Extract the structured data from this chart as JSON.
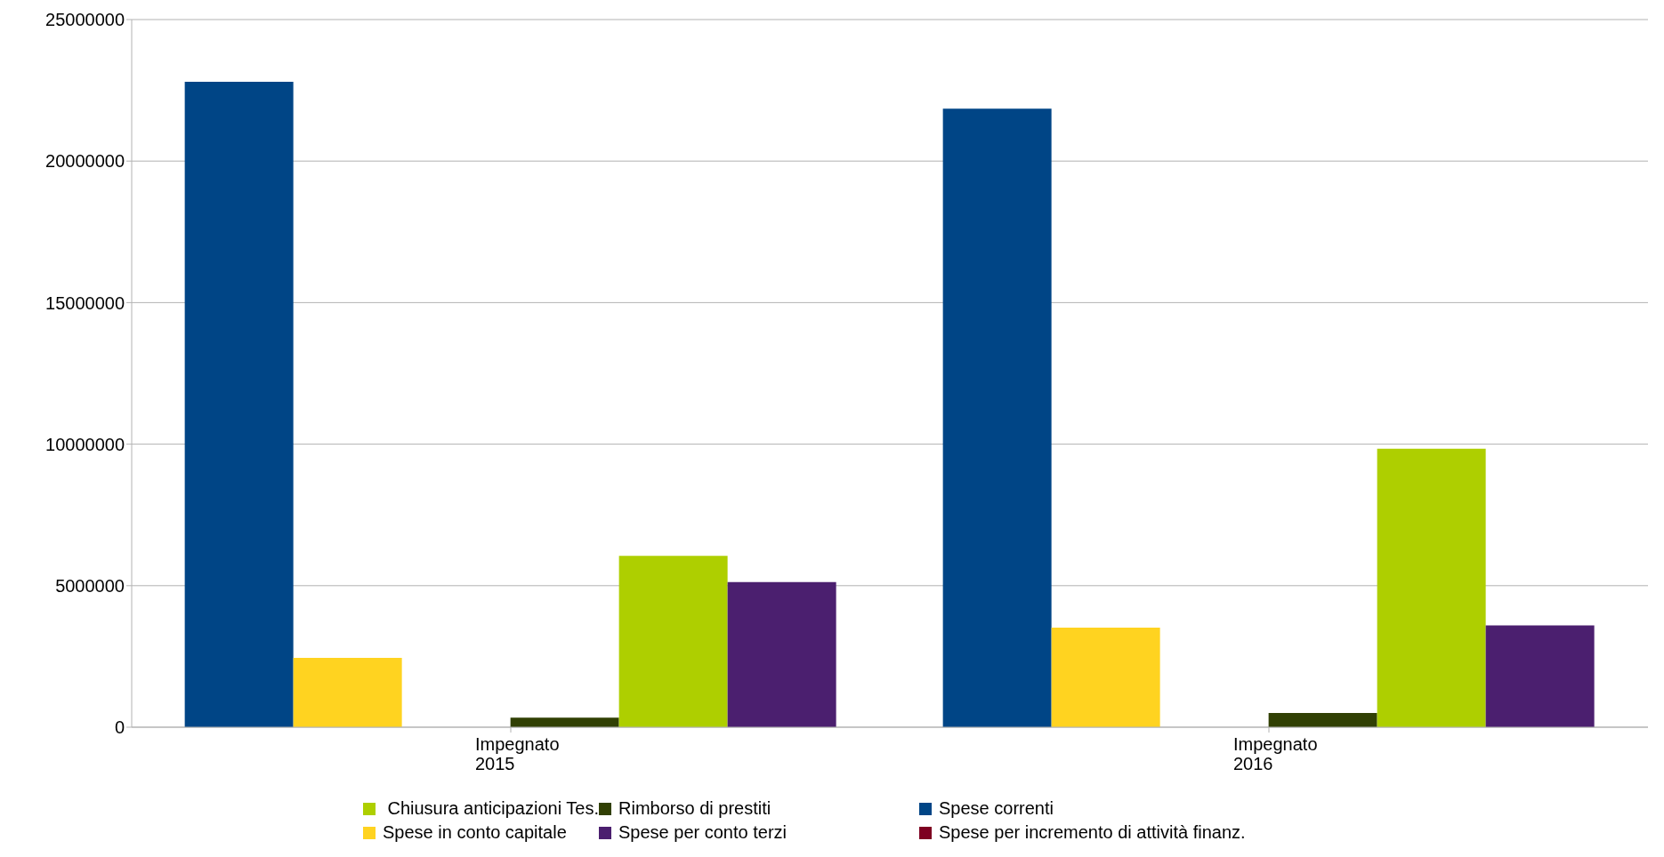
{
  "chart_data": {
    "type": "bar",
    "categories": [
      "Impegnato\n2015",
      "Impegnato\n2016"
    ],
    "series": [
      {
        "name": "Spese correnti",
        "color": "#004586",
        "values": [
          22800000,
          21850000
        ]
      },
      {
        "name": "Spese in conto capitale",
        "color": "#ffd320",
        "values": [
          2450000,
          3520000
        ]
      },
      {
        "name": "Spese per incremento di attività finanz.",
        "color": "#7e0021",
        "values": [
          0,
          0
        ]
      },
      {
        "name": "Rimborso di prestiti",
        "color": "#314004",
        "values": [
          340000,
          500000
        ]
      },
      {
        "name": " Chiusura anticipazioni Tes.",
        "color": "#aecf00",
        "values": [
          6050000,
          9840000
        ]
      },
      {
        "name": "Spese per conto terzi",
        "color": "#4b1f6f",
        "values": [
          5130000,
          3600000
        ]
      }
    ],
    "ylim": [
      0,
      25000000
    ],
    "yticks": [
      0,
      5000000,
      10000000,
      15000000,
      20000000,
      25000000
    ],
    "grid": "y",
    "legend": "bottom"
  }
}
